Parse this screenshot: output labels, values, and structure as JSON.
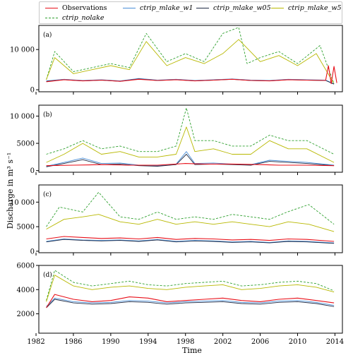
{
  "colors": {
    "observations": "#e8101a",
    "ctrip_mlake_w1": "#4a8fd8",
    "ctrip_mlake_w05": "#1f2a44",
    "ctrip_mlake_w5": "#b8b800",
    "ctrip_nolake": "#2ea02e"
  },
  "legend": {
    "observations": "Observations",
    "ctrip_mlake_w1": "ctrip_mlake_w1",
    "ctrip_mlake_w05": "ctrip_mlake_w05",
    "ctrip_mlake_w5": "ctrip_mlake_w5",
    "ctrip_nolake": "ctrip_nolake"
  },
  "axes": {
    "xlabel": "Time",
    "ylabel": "Discharge in m³ s⁻¹"
  },
  "chart_data": [
    {
      "type": "line",
      "panel_label": "(a)",
      "xlim": [
        1982.3,
        2014.8
      ],
      "ylim": [
        -500,
        16000
      ],
      "yticks": [
        0,
        10000
      ],
      "ytick_labels": [
        "0",
        "10 000"
      ],
      "series": [
        {
          "name": "Observations",
          "style": "solid",
          "x": [
            1983.1,
            1985,
            1987,
            1989,
            1991,
            1993,
            1995,
            1997,
            1999,
            2001,
            2003,
            2005,
            2007,
            2009,
            2011,
            2013,
            2013.3,
            2013.6,
            2013.9,
            2014.2
          ],
          "y": [
            2000,
            2500,
            2200,
            2400,
            2100,
            2600,
            2300,
            2500,
            2200,
            2400,
            2600,
            2300,
            2200,
            2500,
            2400,
            2300,
            6000,
            1500,
            5800,
            1700
          ]
        },
        {
          "name": "ctrip_mlake_w1",
          "style": "solid",
          "x": [
            1983.1,
            1985,
            1987,
            1989,
            1991,
            1993,
            1995,
            1997,
            1999,
            2001,
            2003,
            2005,
            2007,
            2009,
            2011,
            2013,
            2013.9
          ],
          "y": [
            2200,
            2600,
            2300,
            2500,
            2200,
            2800,
            2400,
            2600,
            2300,
            2500,
            2700,
            2400,
            2300,
            2600,
            2500,
            2400,
            1500
          ]
        },
        {
          "name": "ctrip_mlake_w05",
          "style": "solid",
          "x": [
            1983.1,
            1985,
            1987,
            1989,
            1991,
            1993,
            1995,
            1997,
            1999,
            2001,
            2003,
            2005,
            2007,
            2009,
            2011,
            2013,
            2013.9
          ],
          "y": [
            2100,
            2500,
            2200,
            2400,
            2100,
            2700,
            2300,
            2500,
            2200,
            2400,
            2600,
            2300,
            2200,
            2500,
            2400,
            2300,
            1400
          ]
        },
        {
          "name": "ctrip_mlake_w5",
          "style": "solid",
          "x": [
            1983.1,
            1984,
            1986,
            1988,
            1990,
            1992,
            1993.8,
            1996,
            1998,
            2000,
            2002,
            2003.7,
            2006,
            2008,
            2010,
            2012,
            2013.9
          ],
          "y": [
            2500,
            8000,
            4000,
            5000,
            6000,
            5000,
            12000,
            6000,
            8000,
            6500,
            9000,
            12500,
            7000,
            8500,
            6000,
            9000,
            1500
          ]
        },
        {
          "name": "ctrip_nolake",
          "style": "dashed",
          "x": [
            1983.1,
            1984,
            1986,
            1988,
            1990,
            1992,
            1993.8,
            1996,
            1998,
            2000,
            2002,
            2003.7,
            2004.6,
            2006,
            2008,
            2010,
            2012.4,
            2013.9
          ],
          "y": [
            2500,
            9500,
            4500,
            5500,
            6500,
            5500,
            14000,
            7000,
            9000,
            7000,
            14000,
            15500,
            6500,
            8000,
            9500,
            6500,
            11000,
            1500
          ]
        }
      ]
    },
    {
      "type": "line",
      "panel_label": "(b)",
      "xlim": [
        1982.3,
        2014.8
      ],
      "ylim": [
        -300,
        12000
      ],
      "yticks": [
        0,
        5000,
        10000
      ],
      "ytick_labels": [
        "0",
        "5000",
        "10 000"
      ],
      "series": [
        {
          "name": "Observations",
          "style": "solid",
          "x": [
            1983.1,
            1986,
            1989,
            1992,
            1995,
            1998,
            2000,
            2003,
            2006,
            2008,
            2011,
            2013.9
          ],
          "y": [
            900,
            1000,
            1100,
            1000,
            1000,
            1300,
            1200,
            1200,
            1100,
            1000,
            1000,
            900
          ]
        },
        {
          "name": "ctrip_mlake_w1",
          "style": "solid",
          "x": [
            1983.1,
            1985,
            1987,
            1989,
            1991,
            1993,
            1995,
            1997,
            1998.1,
            1999,
            2001,
            2003,
            2005,
            2007,
            2009,
            2011,
            2013.9
          ],
          "y": [
            800,
            1500,
            2300,
            1300,
            1400,
            1000,
            900,
            1200,
            3500,
            1300,
            1400,
            1200,
            1100,
            1900,
            1700,
            1500,
            1000
          ]
        },
        {
          "name": "ctrip_mlake_w05",
          "style": "solid",
          "x": [
            1983.1,
            1985,
            1987,
            1989,
            1991,
            1993,
            1995,
            1997,
            1998.1,
            1999,
            2001,
            2003,
            2005,
            2007,
            2009,
            2011,
            2013.9
          ],
          "y": [
            700,
            1300,
            2000,
            1100,
            1200,
            900,
            800,
            1100,
            3000,
            1100,
            1200,
            1100,
            1000,
            1700,
            1500,
            1300,
            900
          ]
        },
        {
          "name": "ctrip_mlake_w5",
          "style": "solid",
          "x": [
            1983.1,
            1985,
            1987,
            1989,
            1991,
            1993,
            1995,
            1997,
            1998.1,
            1999,
            2001,
            2003,
            2005,
            2007,
            2009,
            2011,
            2013.9
          ],
          "y": [
            1500,
            3000,
            5000,
            3000,
            3500,
            2500,
            2500,
            3000,
            8000,
            3500,
            4000,
            3000,
            3000,
            5500,
            4000,
            4000,
            1500
          ]
        },
        {
          "name": "ctrip_nolake",
          "style": "dashed",
          "x": [
            1983.1,
            1985,
            1987,
            1989,
            1991,
            1993,
            1995,
            1997,
            1998.1,
            1999,
            2001,
            2003,
            2005,
            2007,
            2009,
            2011,
            2013.9
          ],
          "y": [
            3000,
            4000,
            5500,
            4000,
            4500,
            3500,
            3500,
            4500,
            11500,
            5500,
            5500,
            4500,
            4500,
            6500,
            5500,
            5500,
            3000
          ]
        }
      ]
    },
    {
      "type": "line",
      "panel_label": "(c)",
      "xlim": [
        1982.3,
        2014.8
      ],
      "ylim": [
        -300,
        13500
      ],
      "yticks": [
        0,
        5000,
        10000
      ],
      "ytick_labels": [
        "0",
        "5000",
        "10 000"
      ],
      "series": [
        {
          "name": "Observations",
          "style": "solid",
          "x": [
            1983.1,
            1985,
            1987,
            1989,
            1991,
            1993,
            1995,
            1997,
            1999,
            2001,
            2003,
            2005,
            2007,
            2009,
            2011,
            2013.9
          ],
          "y": [
            2500,
            3000,
            2800,
            2600,
            2700,
            2500,
            2800,
            2400,
            2600,
            2500,
            2300,
            2400,
            2200,
            2500,
            2400,
            2000
          ]
        },
        {
          "name": "ctrip_mlake_w1",
          "style": "solid",
          "x": [
            1983.1,
            1985,
            1987,
            1989,
            1991,
            1993,
            1995,
            1997,
            1999,
            2001,
            2003,
            2005,
            2007,
            2009,
            2011,
            2013.9
          ],
          "y": [
            2000,
            2500,
            2300,
            2200,
            2300,
            2100,
            2400,
            2000,
            2200,
            2100,
            1900,
            2000,
            1800,
            2100,
            2000,
            1700
          ]
        },
        {
          "name": "ctrip_mlake_w05",
          "style": "solid",
          "x": [
            1983.1,
            1985,
            1987,
            1989,
            1991,
            1993,
            1995,
            1997,
            1999,
            2001,
            2003,
            2005,
            2007,
            2009,
            2011,
            2013.9
          ],
          "y": [
            1900,
            2400,
            2200,
            2100,
            2200,
            2000,
            2300,
            1900,
            2100,
            2000,
            1800,
            1900,
            1700,
            2000,
            1900,
            1600
          ]
        },
        {
          "name": "ctrip_mlake_w5",
          "style": "solid",
          "x": [
            1983.1,
            1985,
            1987,
            1988.7,
            1991,
            1993,
            1995,
            1997,
            1999,
            2001,
            2003,
            2005,
            2007,
            2009,
            2011.2,
            2013.9
          ],
          "y": [
            4500,
            6500,
            7000,
            7500,
            6000,
            5500,
            6500,
            5500,
            6000,
            5500,
            6000,
            5500,
            5000,
            6000,
            5500,
            4000
          ]
        },
        {
          "name": "ctrip_nolake",
          "style": "dashed",
          "x": [
            1983.1,
            1984.5,
            1987,
            1988.7,
            1991,
            1993,
            1995,
            1997,
            1999,
            2001,
            2003,
            2005,
            2007,
            2008.9,
            2011.2,
            2013.9
          ],
          "y": [
            5000,
            9000,
            8000,
            12000,
            7000,
            6500,
            8000,
            6500,
            7000,
            6500,
            7500,
            7000,
            6500,
            8000,
            9500,
            5500
          ]
        }
      ]
    },
    {
      "type": "line",
      "panel_label": "(d)",
      "xlim": [
        1982.3,
        2014.8
      ],
      "ylim": [
        400,
        6000
      ],
      "yticks": [
        2000,
        4000,
        6000
      ],
      "ytick_labels": [
        "2000",
        "4000",
        "6000"
      ],
      "series": [
        {
          "name": "Observations",
          "style": "solid",
          "x": [
            1983.1,
            1984,
            1986,
            1988,
            1990,
            1992,
            1994,
            1996,
            1998,
            2000,
            2002,
            2004,
            2006,
            2008,
            2010,
            2012,
            2013.9
          ],
          "y": [
            2500,
            3600,
            3200,
            3000,
            3100,
            3400,
            3300,
            3000,
            3100,
            3200,
            3300,
            3100,
            3000,
            3200,
            3300,
            3100,
            2900
          ]
        },
        {
          "name": "ctrip_mlake_w1",
          "style": "solid",
          "x": [
            1983.1,
            1984,
            1986,
            1988,
            1990,
            1992,
            1994,
            1996,
            1998,
            2000,
            2002,
            2004,
            2006,
            2008,
            2010,
            2012,
            2013.9
          ],
          "y": [
            2600,
            3300,
            3000,
            2900,
            2950,
            3100,
            3050,
            2900,
            3000,
            3050,
            3100,
            2950,
            2900,
            3050,
            3100,
            2950,
            2700
          ]
        },
        {
          "name": "ctrip_mlake_w05",
          "style": "solid",
          "x": [
            1983.1,
            1984,
            1986,
            1988,
            1990,
            1992,
            1994,
            1996,
            1998,
            2000,
            2002,
            2004,
            2006,
            2008,
            2010,
            2012,
            2013.9
          ],
          "y": [
            2500,
            3200,
            2900,
            2800,
            2850,
            3000,
            2950,
            2800,
            2900,
            2950,
            3000,
            2850,
            2800,
            2950,
            3000,
            2850,
            2600
          ]
        },
        {
          "name": "ctrip_mlake_w5",
          "style": "solid",
          "x": [
            1983.1,
            1984,
            1986,
            1988,
            1990,
            1992,
            1994,
            1996,
            1998,
            2000,
            2002,
            2004,
            2006,
            2008,
            2010,
            2012,
            2013.9
          ],
          "y": [
            3000,
            5200,
            4300,
            4000,
            4200,
            4300,
            4100,
            4000,
            4200,
            4300,
            4400,
            4000,
            4100,
            4300,
            4400,
            4200,
            3800
          ]
        },
        {
          "name": "ctrip_nolake",
          "style": "dashed",
          "x": [
            1983.1,
            1984,
            1986,
            1988,
            1990,
            1992,
            1994,
            1996,
            1998,
            2000,
            2002,
            2004,
            2006,
            2008,
            2010,
            2012,
            2013.9
          ],
          "y": [
            3100,
            5600,
            4600,
            4300,
            4500,
            4700,
            4400,
            4300,
            4500,
            4600,
            4700,
            4300,
            4400,
            4600,
            4700,
            4500,
            3900
          ]
        }
      ]
    }
  ],
  "xaxis": {
    "ticks": [
      1982,
      1986,
      1990,
      1994,
      1998,
      2002,
      2006,
      2010,
      2014
    ],
    "tick_labels": [
      "1982",
      "1986",
      "1990",
      "1994",
      "1998",
      "2002",
      "2006",
      "2010",
      "2014"
    ]
  }
}
